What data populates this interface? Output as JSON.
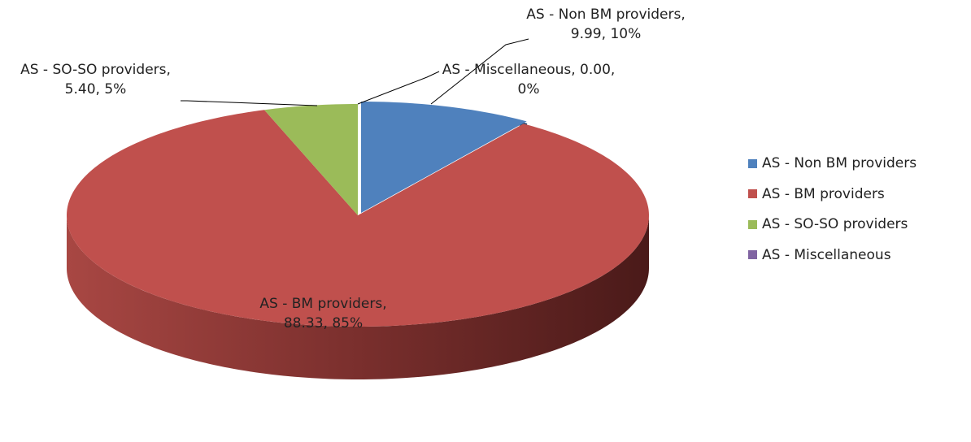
{
  "chart_data": {
    "type": "pie3d",
    "categories": [
      "AS - Non BM providers",
      "AS - BM providers",
      "AS - SO-SO providers",
      "AS - Miscellaneous"
    ],
    "values": [
      9.99,
      88.33,
      5.4,
      0.0
    ],
    "value_labels": [
      "9.99",
      "88.33",
      "5.40",
      "0.00"
    ],
    "percent_labels": [
      "10%",
      "85%",
      "5%",
      "0%"
    ],
    "label_separator": ", ",
    "colors": [
      "#4f81bd",
      "#c0504d",
      "#9bbb59",
      "#8064a2"
    ],
    "legend": "right"
  }
}
